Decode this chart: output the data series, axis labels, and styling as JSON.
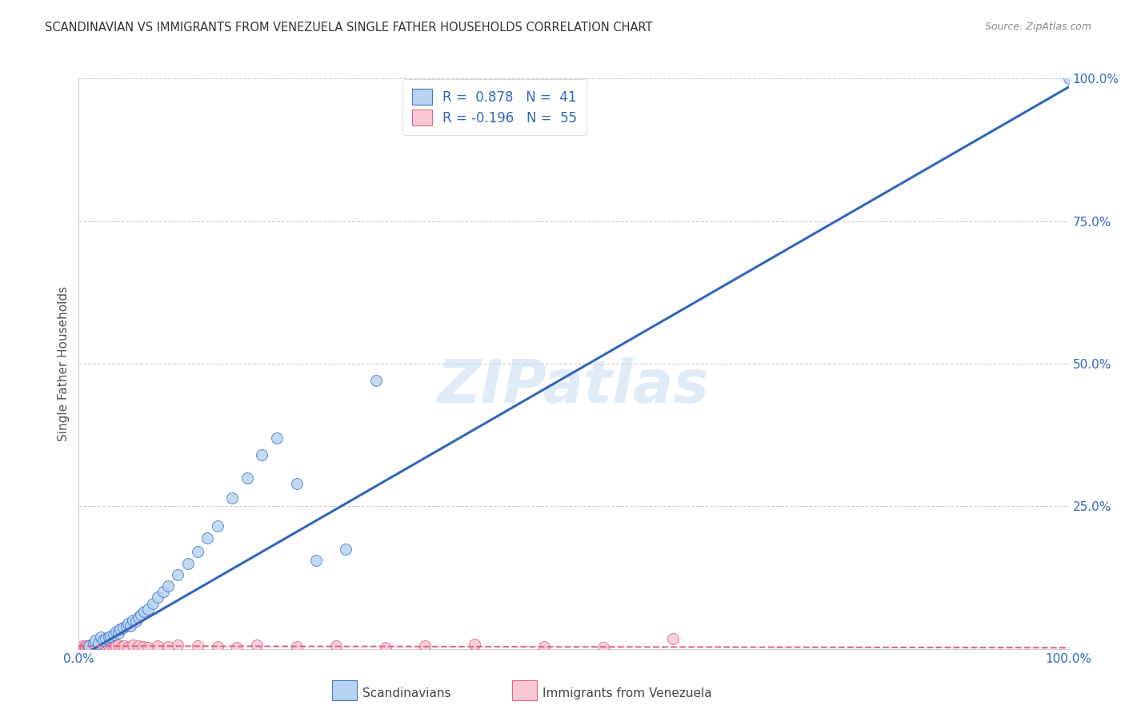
{
  "title": "SCANDINAVIAN VS IMMIGRANTS FROM VENEZUELA SINGLE FATHER HOUSEHOLDS CORRELATION CHART",
  "source": "Source: ZipAtlas.com",
  "ylabel": "Single Father Households",
  "watermark": "ZIPatlas",
  "r_blue": 0.878,
  "n_blue": 41,
  "r_pink": -0.196,
  "n_pink": 55,
  "blue_color": "#b8d4f0",
  "blue_edge_color": "#4477cc",
  "blue_line_color": "#3366bb",
  "pink_color": "#f8c8d4",
  "pink_edge_color": "#dd6688",
  "pink_line_color": "#dd6688",
  "background": "#ffffff",
  "grid_color": "#cccccc",
  "blue_scatter_x": [
    0.01,
    0.015,
    0.017,
    0.02,
    0.022,
    0.025,
    0.027,
    0.03,
    0.032,
    0.035,
    0.038,
    0.04,
    0.042,
    0.045,
    0.048,
    0.05,
    0.052,
    0.055,
    0.058,
    0.06,
    0.063,
    0.066,
    0.07,
    0.075,
    0.08,
    0.085,
    0.09,
    0.1,
    0.11,
    0.12,
    0.13,
    0.14,
    0.155,
    0.17,
    0.185,
    0.2,
    0.22,
    0.24,
    0.27,
    0.3,
    1.0
  ],
  "blue_scatter_y": [
    0.005,
    0.01,
    0.015,
    0.01,
    0.02,
    0.015,
    0.018,
    0.02,
    0.022,
    0.025,
    0.03,
    0.028,
    0.035,
    0.038,
    0.04,
    0.045,
    0.04,
    0.05,
    0.048,
    0.055,
    0.06,
    0.065,
    0.07,
    0.08,
    0.09,
    0.1,
    0.11,
    0.13,
    0.15,
    0.17,
    0.195,
    0.215,
    0.265,
    0.3,
    0.34,
    0.37,
    0.29,
    0.155,
    0.175,
    0.47,
    1.0
  ],
  "pink_scatter_x": [
    0.002,
    0.003,
    0.004,
    0.005,
    0.006,
    0.007,
    0.008,
    0.009,
    0.01,
    0.011,
    0.012,
    0.013,
    0.014,
    0.015,
    0.016,
    0.017,
    0.018,
    0.019,
    0.02,
    0.021,
    0.022,
    0.023,
    0.024,
    0.025,
    0.026,
    0.027,
    0.028,
    0.03,
    0.032,
    0.034,
    0.036,
    0.038,
    0.04,
    0.043,
    0.046,
    0.05,
    0.055,
    0.06,
    0.065,
    0.07,
    0.08,
    0.09,
    0.1,
    0.12,
    0.14,
    0.16,
    0.18,
    0.22,
    0.26,
    0.31,
    0.35,
    0.4,
    0.47,
    0.53,
    0.6
  ],
  "pink_scatter_y": [
    0.003,
    0.002,
    0.005,
    0.003,
    0.004,
    0.003,
    0.005,
    0.003,
    0.004,
    0.006,
    0.004,
    0.005,
    0.003,
    0.006,
    0.004,
    0.005,
    0.003,
    0.007,
    0.004,
    0.005,
    0.003,
    0.006,
    0.004,
    0.005,
    0.003,
    0.006,
    0.004,
    0.005,
    0.003,
    0.006,
    0.004,
    0.005,
    0.006,
    0.004,
    0.005,
    0.003,
    0.007,
    0.005,
    0.004,
    0.003,
    0.005,
    0.004,
    0.007,
    0.005,
    0.004,
    0.003,
    0.006,
    0.004,
    0.005,
    0.003,
    0.005,
    0.008,
    0.004,
    0.003,
    0.018
  ],
  "blue_line_x0": 0.0,
  "blue_line_y0": -0.015,
  "blue_line_x1": 1.0,
  "blue_line_y1": 0.985,
  "pink_line_x0": 0.0,
  "pink_line_y0": 0.005,
  "pink_line_x1": 1.0,
  "pink_line_y1": 0.002,
  "xmin": 0.0,
  "xmax": 1.0,
  "ymin": 0.0,
  "ymax": 1.0,
  "yticks": [
    0.0,
    0.25,
    0.5,
    0.75,
    1.0
  ],
  "ytick_labels": [
    "",
    "25.0%",
    "50.0%",
    "75.0%",
    "100.0%"
  ],
  "xtick_left_label": "0.0%",
  "xtick_right_label": "100.0%",
  "legend_blue_label": "R =  0.878   N =  41",
  "legend_pink_label": "R = -0.196   N =  55",
  "bottom_legend_blue": "Scandinavians",
  "bottom_legend_pink": "Immigrants from Venezuela",
  "title_color": "#333333",
  "source_color": "#888888",
  "axis_label_color": "#555555",
  "tick_color": "#3366bb",
  "legend_text_color": "#3366bb"
}
